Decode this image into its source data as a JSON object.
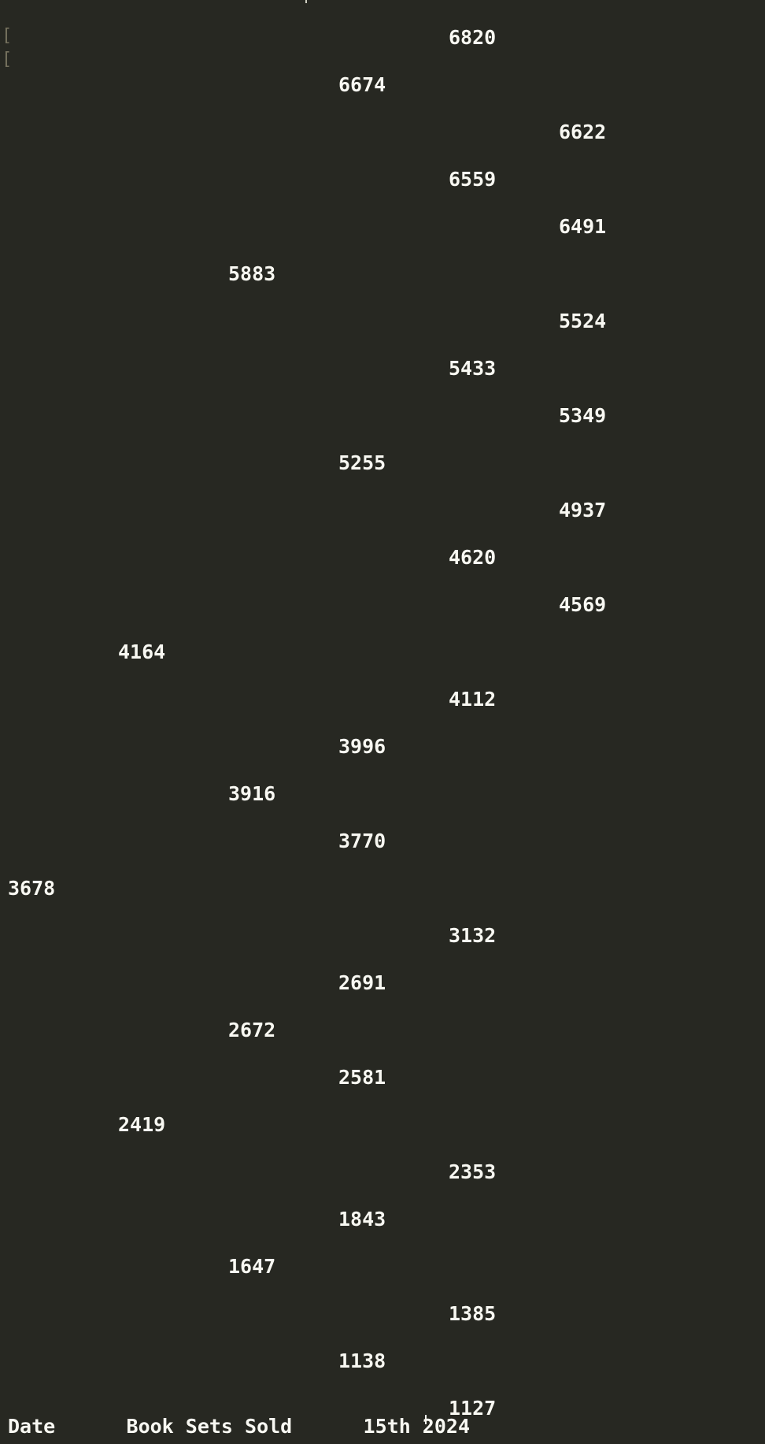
{
  "editor": {
    "gutter_markers": [
      "[",
      "["
    ],
    "values": [
      {
        "text": "6820",
        "col": 4
      },
      {
        "text": "6674",
        "col": 3
      },
      {
        "text": "6622",
        "col": 5
      },
      {
        "text": "6559",
        "col": 4
      },
      {
        "text": "6491",
        "col": 5
      },
      {
        "text": "5883",
        "col": 2
      },
      {
        "text": "5524",
        "col": 5
      },
      {
        "text": "5433",
        "col": 4
      },
      {
        "text": "5349",
        "col": 5
      },
      {
        "text": "5255",
        "col": 3
      },
      {
        "text": "4937",
        "col": 5
      },
      {
        "text": "4620",
        "col": 4
      },
      {
        "text": "4569",
        "col": 5
      },
      {
        "text": "4164",
        "col": 1
      },
      {
        "text": "4112",
        "col": 4
      },
      {
        "text": "3996",
        "col": 3
      },
      {
        "text": "3916",
        "col": 2
      },
      {
        "text": "3770",
        "col": 3
      },
      {
        "text": "3678",
        "col": 0
      },
      {
        "text": "3132",
        "col": 4
      },
      {
        "text": "2691",
        "col": 3
      },
      {
        "text": "2672",
        "col": 2
      },
      {
        "text": "2581",
        "col": 3
      },
      {
        "text": "2419",
        "col": 1
      },
      {
        "text": "2353",
        "col": 4
      },
      {
        "text": "1843",
        "col": 3
      },
      {
        "text": "1647",
        "col": 2
      },
      {
        "text": "1385",
        "col": 4
      },
      {
        "text": "1138",
        "col": 3
      },
      {
        "text": "1127",
        "col": 4
      }
    ],
    "footer_partial_text": "Date      Book Sets Sold      15th 2024"
  }
}
